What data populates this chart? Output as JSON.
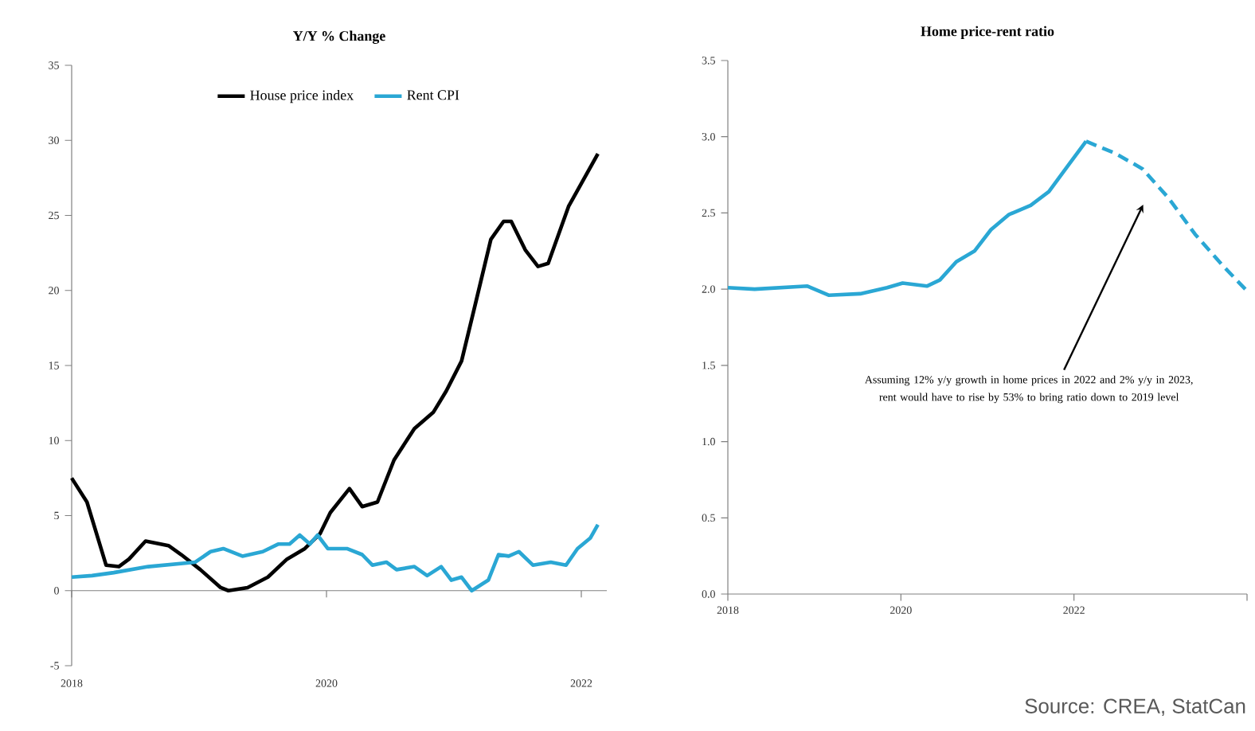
{
  "chart_data": [
    {
      "type": "line",
      "title": "Y/Y % Change",
      "xlim": [
        2018,
        2022.2
      ],
      "ylim": [
        -5,
        35
      ],
      "xticks": [
        2018,
        2020,
        2022
      ],
      "yticks": [
        -5,
        0,
        5,
        10,
        15,
        20,
        25,
        30,
        35
      ],
      "legend": "top",
      "series": [
        {
          "name": "House price index",
          "color": "#000000",
          "x": [
            2018.0,
            2018.12,
            2018.27,
            2018.37,
            2018.45,
            2018.58,
            2018.76,
            2018.86,
            2019.01,
            2019.17,
            2019.23,
            2019.38,
            2019.54,
            2019.69,
            2019.83,
            2019.95,
            2020.03,
            2020.18,
            2020.28,
            2020.4,
            2020.53,
            2020.69,
            2020.84,
            2020.94,
            2021.06,
            2021.16,
            2021.29,
            2021.39,
            2021.45,
            2021.56,
            2021.66,
            2021.74,
            2021.9,
            2022.13
          ],
          "values": [
            7.5,
            5.9,
            1.7,
            1.6,
            2.1,
            3.3,
            3.0,
            2.4,
            1.4,
            0.2,
            0.0,
            0.2,
            0.9,
            2.1,
            2.8,
            3.8,
            5.2,
            6.8,
            5.6,
            5.9,
            8.7,
            10.8,
            11.9,
            13.3,
            15.3,
            18.8,
            23.4,
            24.6,
            24.6,
            22.7,
            21.6,
            21.8,
            25.6,
            29.1
          ]
        },
        {
          "name": "Rent CPI",
          "color": "#2aa7d4",
          "x": [
            2018.0,
            2018.16,
            2018.33,
            2018.6,
            2018.97,
            2019.09,
            2019.19,
            2019.34,
            2019.5,
            2019.62,
            2019.71,
            2019.79,
            2019.87,
            2019.93,
            2020.01,
            2020.16,
            2020.28,
            2020.36,
            2020.47,
            2020.55,
            2020.69,
            2020.79,
            2020.9,
            2020.98,
            2021.06,
            2021.14,
            2021.27,
            2021.35,
            2021.43,
            2021.51,
            2021.62,
            2021.76,
            2021.88,
            2021.97,
            2022.07,
            2022.13
          ],
          "values": [
            0.9,
            1.0,
            1.2,
            1.6,
            1.9,
            2.6,
            2.8,
            2.3,
            2.6,
            3.1,
            3.1,
            3.7,
            3.1,
            3.7,
            2.8,
            2.8,
            2.4,
            1.7,
            1.9,
            1.4,
            1.6,
            1.0,
            1.6,
            0.7,
            0.9,
            0.0,
            0.7,
            2.4,
            2.3,
            2.6,
            1.7,
            1.9,
            1.7,
            2.8,
            3.5,
            4.4
          ]
        }
      ]
    },
    {
      "type": "line",
      "title": "Home price-rent ratio",
      "xlim": [
        2018,
        2024
      ],
      "ylim": [
        0,
        3.5
      ],
      "xticks": [
        2018,
        2020,
        2022,
        {
          "value": 2024,
          "label": null
        }
      ],
      "yticks": [
        {
          "value": 0,
          "label": "0.0"
        },
        0.5,
        {
          "value": 1,
          "label": "1.0"
        },
        1.5,
        {
          "value": 2,
          "label": "2.0"
        },
        2.5,
        {
          "value": 3,
          "label": "3.0"
        },
        3.5
      ],
      "series": [
        {
          "color": "#2aa7d4",
          "line_style": "solid",
          "x": [
            2018.0,
            2018.31,
            2018.92,
            2019.17,
            2019.53,
            2019.84,
            2020.02,
            2020.3,
            2020.45,
            2020.64,
            2020.85,
            2021.04,
            2021.25,
            2021.5,
            2021.71,
            2021.93,
            2022.14
          ],
          "values": [
            2.01,
            2.0,
            2.02,
            1.96,
            1.97,
            2.01,
            2.04,
            2.02,
            2.06,
            2.18,
            2.25,
            2.39,
            2.49,
            2.55,
            2.64,
            2.81,
            2.97
          ]
        },
        {
          "color": "#2aa7d4",
          "line_style": "dashed",
          "x": [
            2022.14,
            2022.48,
            2022.79,
            2023.09,
            2023.4,
            2023.71,
            2023.98
          ],
          "values": [
            2.97,
            2.89,
            2.79,
            2.6,
            2.36,
            2.16,
            2.0
          ]
        }
      ],
      "annotations": [
        "Assuming 12% y/y growth in home prices in 2022 and 2% y/y in 2023, rent would have to rise by 53% to bring ratio down to 2019 level",
        "Source: CREA, StatCan"
      ]
    }
  ]
}
